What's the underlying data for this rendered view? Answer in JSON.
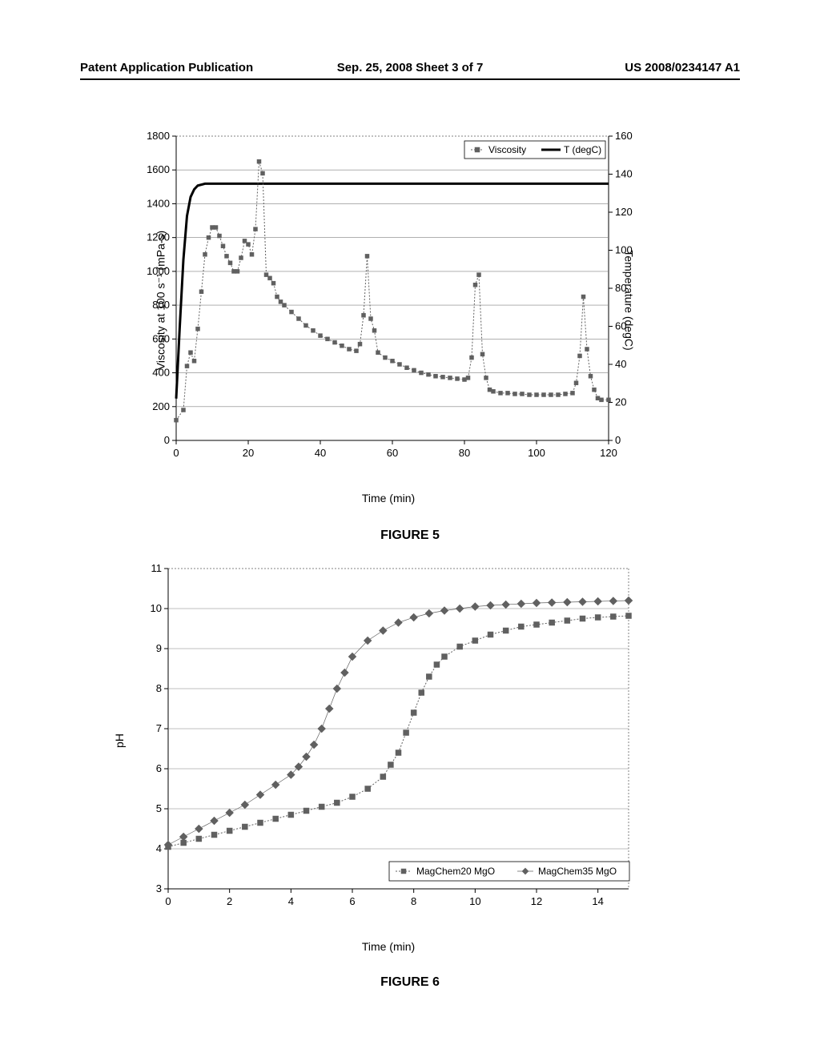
{
  "header": {
    "left": "Patent Application Publication",
    "mid": "Sep. 25, 2008  Sheet 3 of 7",
    "right": "US 2008/0234147 A1"
  },
  "figure5": {
    "type": "line",
    "caption": "FIGURE 5",
    "x_label": "Time (min)",
    "y_left_label": "Viscosity at 100 s⁻¹ (mPa-s)",
    "y_right_label": "Temperature (degC)",
    "xlim": [
      0,
      120
    ],
    "xtick_step": 20,
    "ylim_left": [
      0,
      1800
    ],
    "ytick_step_left": 200,
    "ylim_right": [
      0,
      160
    ],
    "ytick_step_right": 20,
    "background_color": "#ffffff",
    "grid_color": "#808080",
    "legend": [
      {
        "label": "Viscosity",
        "marker": "hatch"
      },
      {
        "label": "T (degC)",
        "marker": "solid"
      }
    ],
    "temperature_color": "#000000",
    "viscosity_color": "#606060",
    "temperature_line_width": 3,
    "viscosity_marker_size": 5,
    "temperature_data": [
      [
        0,
        22
      ],
      [
        1,
        60
      ],
      [
        2,
        95
      ],
      [
        3,
        118
      ],
      [
        4,
        128
      ],
      [
        5,
        132
      ],
      [
        6,
        134
      ],
      [
        8,
        135
      ],
      [
        10,
        135
      ],
      [
        15,
        135
      ],
      [
        20,
        135
      ],
      [
        30,
        135
      ],
      [
        50,
        135
      ],
      [
        80,
        135
      ],
      [
        120,
        135
      ]
    ],
    "viscosity_data": [
      [
        0,
        120
      ],
      [
        2,
        180
      ],
      [
        3,
        440
      ],
      [
        4,
        520
      ],
      [
        5,
        470
      ],
      [
        6,
        660
      ],
      [
        7,
        880
      ],
      [
        8,
        1100
      ],
      [
        9,
        1200
      ],
      [
        10,
        1260
      ],
      [
        11,
        1260
      ],
      [
        12,
        1210
      ],
      [
        13,
        1150
      ],
      [
        14,
        1090
      ],
      [
        15,
        1050
      ],
      [
        16,
        1000
      ],
      [
        17,
        1000
      ],
      [
        18,
        1080
      ],
      [
        19,
        1180
      ],
      [
        20,
        1160
      ],
      [
        21,
        1100
      ],
      [
        22,
        1250
      ],
      [
        23,
        1650
      ],
      [
        24,
        1580
      ],
      [
        25,
        980
      ],
      [
        26,
        960
      ],
      [
        27,
        930
      ],
      [
        28,
        850
      ],
      [
        29,
        820
      ],
      [
        30,
        800
      ],
      [
        32,
        760
      ],
      [
        34,
        720
      ],
      [
        36,
        680
      ],
      [
        38,
        650
      ],
      [
        40,
        620
      ],
      [
        42,
        600
      ],
      [
        44,
        580
      ],
      [
        46,
        560
      ],
      [
        48,
        540
      ],
      [
        50,
        530
      ],
      [
        51,
        570
      ],
      [
        52,
        740
      ],
      [
        53,
        1090
      ],
      [
        54,
        720
      ],
      [
        55,
        650
      ],
      [
        56,
        520
      ],
      [
        58,
        490
      ],
      [
        60,
        470
      ],
      [
        62,
        450
      ],
      [
        64,
        430
      ],
      [
        66,
        415
      ],
      [
        68,
        400
      ],
      [
        70,
        390
      ],
      [
        72,
        380
      ],
      [
        74,
        375
      ],
      [
        76,
        370
      ],
      [
        78,
        365
      ],
      [
        80,
        360
      ],
      [
        81,
        370
      ],
      [
        82,
        490
      ],
      [
        83,
        920
      ],
      [
        84,
        980
      ],
      [
        85,
        510
      ],
      [
        86,
        370
      ],
      [
        87,
        300
      ],
      [
        88,
        290
      ],
      [
        90,
        280
      ],
      [
        92,
        280
      ],
      [
        94,
        275
      ],
      [
        96,
        275
      ],
      [
        98,
        270
      ],
      [
        100,
        270
      ],
      [
        102,
        270
      ],
      [
        104,
        270
      ],
      [
        106,
        270
      ],
      [
        108,
        275
      ],
      [
        110,
        280
      ],
      [
        111,
        340
      ],
      [
        112,
        500
      ],
      [
        113,
        850
      ],
      [
        114,
        540
      ],
      [
        115,
        380
      ],
      [
        116,
        300
      ],
      [
        117,
        250
      ],
      [
        118,
        240
      ],
      [
        120,
        240
      ]
    ]
  },
  "figure6": {
    "type": "line",
    "caption": "FIGURE 6",
    "x_label": "Time (min)",
    "y_label": "pH",
    "xlim": [
      0,
      15
    ],
    "xtick_step": 2,
    "xticks": [
      0,
      2,
      4,
      6,
      8,
      10,
      12,
      14
    ],
    "ylim": [
      3,
      11
    ],
    "ytick_step": 1,
    "background_color": "#ffffff",
    "grid_color": "#808080",
    "legend": [
      {
        "label": "MagChem20 MgO",
        "marker": "hatch"
      },
      {
        "label": "MagChem35 MgO",
        "marker": "diamond"
      }
    ],
    "series1_color": "#606060",
    "series2_color": "#606060",
    "marker_size": 5,
    "magchem20_data": [
      [
        0,
        4.05
      ],
      [
        0.5,
        4.15
      ],
      [
        1,
        4.25
      ],
      [
        1.5,
        4.35
      ],
      [
        2,
        4.45
      ],
      [
        2.5,
        4.55
      ],
      [
        3,
        4.65
      ],
      [
        3.5,
        4.75
      ],
      [
        4,
        4.85
      ],
      [
        4.5,
        4.95
      ],
      [
        5,
        5.05
      ],
      [
        5.5,
        5.15
      ],
      [
        6,
        5.3
      ],
      [
        6.5,
        5.5
      ],
      [
        7,
        5.8
      ],
      [
        7.25,
        6.1
      ],
      [
        7.5,
        6.4
      ],
      [
        7.75,
        6.9
      ],
      [
        8,
        7.4
      ],
      [
        8.25,
        7.9
      ],
      [
        8.5,
        8.3
      ],
      [
        8.75,
        8.6
      ],
      [
        9,
        8.8
      ],
      [
        9.5,
        9.05
      ],
      [
        10,
        9.2
      ],
      [
        10.5,
        9.35
      ],
      [
        11,
        9.45
      ],
      [
        11.5,
        9.55
      ],
      [
        12,
        9.6
      ],
      [
        12.5,
        9.65
      ],
      [
        13,
        9.7
      ],
      [
        13.5,
        9.75
      ],
      [
        14,
        9.78
      ],
      [
        14.5,
        9.8
      ],
      [
        15,
        9.82
      ]
    ],
    "magchem35_data": [
      [
        0,
        4.1
      ],
      [
        0.5,
        4.3
      ],
      [
        1,
        4.5
      ],
      [
        1.5,
        4.7
      ],
      [
        2,
        4.9
      ],
      [
        2.5,
        5.1
      ],
      [
        3,
        5.35
      ],
      [
        3.5,
        5.6
      ],
      [
        4,
        5.85
      ],
      [
        4.25,
        6.05
      ],
      [
        4.5,
        6.3
      ],
      [
        4.75,
        6.6
      ],
      [
        5,
        7.0
      ],
      [
        5.25,
        7.5
      ],
      [
        5.5,
        8.0
      ],
      [
        5.75,
        8.4
      ],
      [
        6,
        8.8
      ],
      [
        6.5,
        9.2
      ],
      [
        7,
        9.45
      ],
      [
        7.5,
        9.65
      ],
      [
        8,
        9.78
      ],
      [
        8.5,
        9.88
      ],
      [
        9,
        9.95
      ],
      [
        9.5,
        10.0
      ],
      [
        10,
        10.05
      ],
      [
        10.5,
        10.08
      ],
      [
        11,
        10.1
      ],
      [
        11.5,
        10.12
      ],
      [
        12,
        10.14
      ],
      [
        12.5,
        10.15
      ],
      [
        13,
        10.16
      ],
      [
        13.5,
        10.17
      ],
      [
        14,
        10.18
      ],
      [
        14.5,
        10.19
      ],
      [
        15,
        10.2
      ]
    ]
  }
}
